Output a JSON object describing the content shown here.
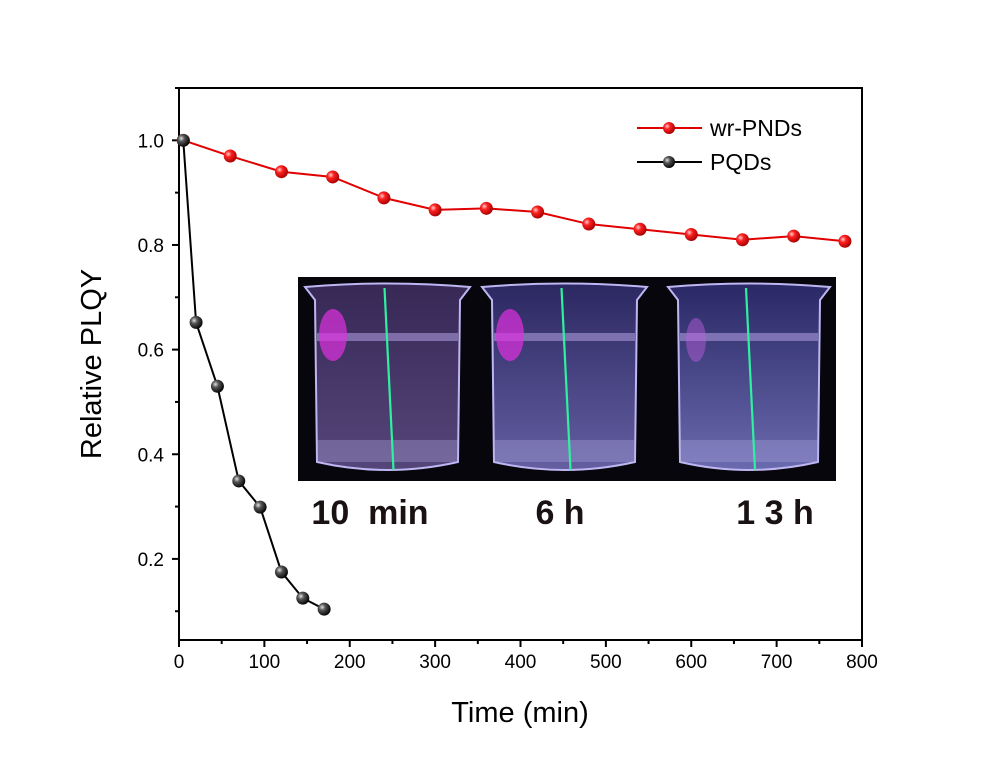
{
  "chart_data": {
    "type": "line",
    "xlabel": "Time (min)",
    "ylabel": "Relative PLQY",
    "xlim": [
      0,
      800
    ],
    "ylim": [
      0.045,
      1.1
    ],
    "xticks": [
      0,
      100,
      200,
      300,
      400,
      500,
      600,
      700,
      800
    ],
    "yticks": [
      0.2,
      0.4,
      0.6,
      0.8,
      1.0
    ],
    "ytick_labels": [
      "0.2",
      "0.4",
      "0.6",
      "0.8",
      "1.0"
    ],
    "grid": false,
    "legend_position": "top-right",
    "series": [
      {
        "name": "wr-PNDs",
        "color": "#e00000",
        "marker": "sphere",
        "x": [
          5,
          60,
          120,
          180,
          240,
          300,
          360,
          420,
          480,
          540,
          600,
          660,
          720,
          780
        ],
        "y": [
          1.0,
          0.97,
          0.94,
          0.93,
          0.89,
          0.867,
          0.87,
          0.863,
          0.84,
          0.83,
          0.82,
          0.81,
          0.817,
          0.807
        ]
      },
      {
        "name": "PQDs",
        "color": "#000000",
        "marker": "sphere",
        "x": [
          5,
          20,
          45,
          70,
          95,
          120,
          145,
          170
        ],
        "y": [
          1.0,
          0.652,
          0.53,
          0.349,
          0.299,
          0.175,
          0.125,
          0.104
        ]
      }
    ],
    "inset": {
      "type": "photo",
      "description_labels": [
        "10  min",
        "6 h",
        "1 3 h"
      ]
    }
  }
}
